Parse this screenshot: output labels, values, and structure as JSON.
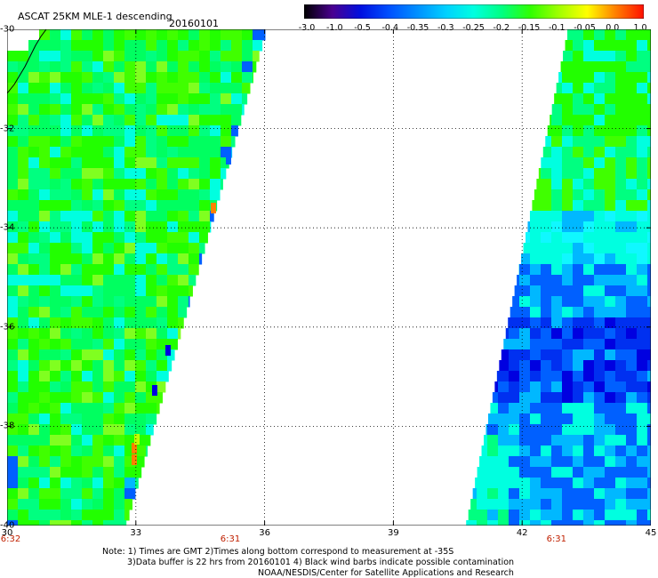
{
  "header": {
    "title": "ASCAT 25KM MLE-1 descending",
    "date": "20160101"
  },
  "colorbar": {
    "labels": [
      "-3.0",
      "-1.0",
      "-0.5",
      "-0.4",
      "-0.35",
      "-0.3",
      "-0.25",
      "-0.2",
      "-0.15",
      "-0.1",
      "-0.05",
      "0.0",
      "1.0"
    ],
    "colors": [
      "#000000",
      "#4a0090",
      "#0010e0",
      "#0050ff",
      "#0090ff",
      "#00d0ff",
      "#00ffe0",
      "#00ff80",
      "#30ff00",
      "#a0ff00",
      "#ffff00",
      "#ff8000",
      "#ff1000"
    ]
  },
  "axes": {
    "lat_labels": [
      "-30",
      "-32",
      "-34",
      "-36",
      "-38",
      "-40"
    ],
    "lat_values": [
      -30,
      -32,
      -34,
      -36,
      -38,
      -40
    ],
    "lon_labels": [
      "30",
      "33",
      "36",
      "39",
      "42",
      "45"
    ],
    "lon_values": [
      30,
      33,
      36,
      39,
      42,
      45
    ],
    "lat_range": [
      -40,
      -30
    ],
    "lon_range": [
      30,
      45
    ],
    "grid": true
  },
  "time_labels": [
    {
      "lon": 30,
      "text": "6:32"
    },
    {
      "lon": 35.2,
      "text": "6:31"
    },
    {
      "lon": 42.8,
      "text": "6:31"
    }
  ],
  "notes": {
    "line1": "Note: 1) Times are GMT 2)Times along bottom correspond to measurement at -35S",
    "line2": "3)Data buffer is 22 hrs from 20160101 4) Black wind barbs indicate possible contamination",
    "line3": "NOAA/NESDIS/Center for Satellite Applications and Research"
  }
}
